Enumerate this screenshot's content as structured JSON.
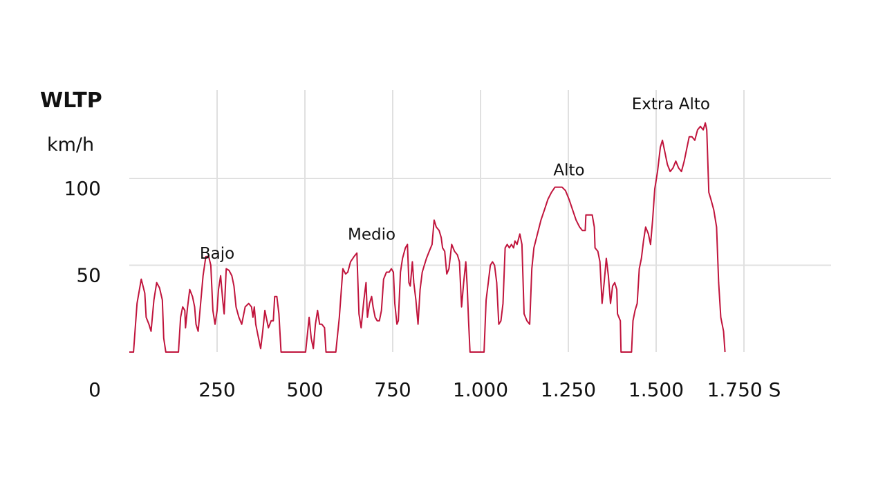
{
  "chart_data": {
    "type": "line",
    "title": "WLTP",
    "ylabel": "km/h",
    "xunit": "S",
    "xlim": [
      0,
      1800
    ],
    "ylim": [
      0,
      131
    ],
    "x_ticks": [
      250,
      500,
      750,
      1000,
      1250,
      1500,
      1750
    ],
    "x_tick_labels": [
      "250",
      "500",
      "750",
      "1.000",
      "1.250",
      "1.500",
      "1.750 S"
    ],
    "y_ticks": [
      0,
      50,
      100
    ],
    "y_tick_labels": [
      "0",
      "50",
      "100"
    ],
    "grid": true,
    "line_color": "#c0143c",
    "phases": [
      {
        "label": "Bajo",
        "x": 250,
        "y": 57
      },
      {
        "label": "Medio",
        "x": 690,
        "y": 68
      },
      {
        "label": "Alto",
        "x": 1252,
        "y": 105
      },
      {
        "label": "Extra Alto",
        "x": 1542,
        "y": 143
      }
    ],
    "series": [
      {
        "points": [
          [
            0,
            0
          ],
          [
            12,
            0
          ],
          [
            22,
            28
          ],
          [
            34,
            42
          ],
          [
            44,
            34
          ],
          [
            48,
            20
          ],
          [
            56,
            16
          ],
          [
            62,
            12
          ],
          [
            70,
            30
          ],
          [
            78,
            40
          ],
          [
            86,
            37
          ],
          [
            94,
            30
          ],
          [
            98,
            8
          ],
          [
            104,
            0
          ],
          [
            140,
            0
          ],
          [
            146,
            20
          ],
          [
            152,
            26
          ],
          [
            158,
            24
          ],
          [
            160,
            14
          ],
          [
            166,
            26
          ],
          [
            172,
            36
          ],
          [
            180,
            32
          ],
          [
            186,
            26
          ],
          [
            190,
            16
          ],
          [
            196,
            12
          ],
          [
            204,
            30
          ],
          [
            210,
            44
          ],
          [
            218,
            55
          ],
          [
            226,
            55
          ],
          [
            232,
            50
          ],
          [
            238,
            24
          ],
          [
            244,
            16
          ],
          [
            250,
            24
          ],
          [
            254,
            36
          ],
          [
            260,
            44
          ],
          [
            266,
            30
          ],
          [
            270,
            22
          ],
          [
            276,
            48
          ],
          [
            284,
            47
          ],
          [
            292,
            44
          ],
          [
            298,
            38
          ],
          [
            304,
            26
          ],
          [
            312,
            20
          ],
          [
            320,
            16
          ],
          [
            330,
            26
          ],
          [
            340,
            28
          ],
          [
            348,
            26
          ],
          [
            352,
            20
          ],
          [
            356,
            26
          ],
          [
            360,
            16
          ],
          [
            366,
            10
          ],
          [
            374,
            2
          ],
          [
            380,
            12
          ],
          [
            386,
            24
          ],
          [
            392,
            18
          ],
          [
            396,
            14
          ],
          [
            404,
            18
          ],
          [
            410,
            18
          ],
          [
            414,
            32
          ],
          [
            420,
            32
          ],
          [
            426,
            22
          ],
          [
            432,
            0
          ],
          [
            502,
            0
          ],
          [
            512,
            20
          ],
          [
            518,
            8
          ],
          [
            524,
            2
          ],
          [
            530,
            16
          ],
          [
            536,
            24
          ],
          [
            542,
            16
          ],
          [
            548,
            16
          ],
          [
            556,
            14
          ],
          [
            560,
            0
          ],
          [
            588,
            0
          ],
          [
            598,
            20
          ],
          [
            608,
            48
          ],
          [
            616,
            45
          ],
          [
            622,
            46
          ],
          [
            630,
            52
          ],
          [
            640,
            55
          ],
          [
            648,
            57
          ],
          [
            654,
            22
          ],
          [
            660,
            14
          ],
          [
            668,
            30
          ],
          [
            674,
            40
          ],
          [
            678,
            20
          ],
          [
            684,
            28
          ],
          [
            690,
            32
          ],
          [
            694,
            26
          ],
          [
            700,
            20
          ],
          [
            706,
            18
          ],
          [
            712,
            18
          ],
          [
            718,
            24
          ],
          [
            724,
            42
          ],
          [
            732,
            46
          ],
          [
            740,
            46
          ],
          [
            746,
            48
          ],
          [
            752,
            46
          ],
          [
            756,
            28
          ],
          [
            762,
            16
          ],
          [
            766,
            18
          ],
          [
            772,
            46
          ],
          [
            778,
            54
          ],
          [
            786,
            60
          ],
          [
            792,
            62
          ],
          [
            796,
            40
          ],
          [
            800,
            38
          ],
          [
            806,
            52
          ],
          [
            810,
            40
          ],
          [
            816,
            30
          ],
          [
            822,
            16
          ],
          [
            828,
            36
          ],
          [
            834,
            46
          ],
          [
            840,
            50
          ],
          [
            846,
            54
          ],
          [
            854,
            58
          ],
          [
            862,
            62
          ],
          [
            868,
            76
          ],
          [
            874,
            72
          ],
          [
            882,
            70
          ],
          [
            888,
            66
          ],
          [
            892,
            60
          ],
          [
            898,
            58
          ],
          [
            904,
            45
          ],
          [
            910,
            48
          ],
          [
            918,
            62
          ],
          [
            926,
            58
          ],
          [
            934,
            56
          ],
          [
            940,
            52
          ],
          [
            946,
            26
          ],
          [
            952,
            40
          ],
          [
            958,
            52
          ],
          [
            962,
            38
          ],
          [
            966,
            18
          ],
          [
            970,
            0
          ],
          [
            1010,
            0
          ],
          [
            1016,
            30
          ],
          [
            1022,
            40
          ],
          [
            1028,
            50
          ],
          [
            1034,
            52
          ],
          [
            1040,
            50
          ],
          [
            1046,
            40
          ],
          [
            1052,
            16
          ],
          [
            1058,
            18
          ],
          [
            1064,
            28
          ],
          [
            1070,
            60
          ],
          [
            1076,
            62
          ],
          [
            1082,
            60
          ],
          [
            1088,
            62
          ],
          [
            1094,
            60
          ],
          [
            1098,
            64
          ],
          [
            1104,
            62
          ],
          [
            1112,
            68
          ],
          [
            1118,
            62
          ],
          [
            1124,
            22
          ],
          [
            1132,
            18
          ],
          [
            1140,
            16
          ],
          [
            1146,
            48
          ],
          [
            1152,
            60
          ],
          [
            1162,
            68
          ],
          [
            1172,
            76
          ],
          [
            1182,
            82
          ],
          [
            1192,
            88
          ],
          [
            1202,
            92
          ],
          [
            1212,
            95
          ],
          [
            1222,
            95
          ],
          [
            1232,
            95
          ],
          [
            1242,
            93
          ],
          [
            1252,
            88
          ],
          [
            1262,
            82
          ],
          [
            1272,
            76
          ],
          [
            1282,
            72
          ],
          [
            1290,
            70
          ],
          [
            1298,
            70
          ],
          [
            1300,
            79
          ],
          [
            1318,
            79
          ],
          [
            1324,
            72
          ],
          [
            1326,
            60
          ],
          [
            1334,
            58
          ],
          [
            1340,
            52
          ],
          [
            1346,
            28
          ],
          [
            1352,
            40
          ],
          [
            1358,
            54
          ],
          [
            1364,
            44
          ],
          [
            1370,
            28
          ],
          [
            1376,
            38
          ],
          [
            1382,
            40
          ],
          [
            1388,
            36
          ],
          [
            1390,
            22
          ],
          [
            1398,
            18
          ],
          [
            1400,
            0
          ],
          [
            1430,
            0
          ],
          [
            1434,
            18
          ],
          [
            1440,
            24
          ],
          [
            1446,
            28
          ],
          [
            1452,
            48
          ],
          [
            1458,
            54
          ],
          [
            1464,
            64
          ],
          [
            1470,
            72
          ],
          [
            1478,
            68
          ],
          [
            1484,
            62
          ],
          [
            1490,
            76
          ],
          [
            1496,
            94
          ],
          [
            1504,
            104
          ],
          [
            1512,
            118
          ],
          [
            1518,
            122
          ],
          [
            1524,
            116
          ],
          [
            1532,
            108
          ],
          [
            1540,
            104
          ],
          [
            1548,
            106
          ],
          [
            1556,
            110
          ],
          [
            1564,
            106
          ],
          [
            1572,
            104
          ],
          [
            1580,
            110
          ],
          [
            1588,
            118
          ],
          [
            1594,
            124
          ],
          [
            1602,
            124
          ],
          [
            1610,
            122
          ],
          [
            1618,
            128
          ],
          [
            1626,
            130
          ],
          [
            1634,
            128
          ],
          [
            1640,
            132
          ],
          [
            1644,
            128
          ],
          [
            1650,
            92
          ],
          [
            1656,
            88
          ],
          [
            1664,
            82
          ],
          [
            1672,
            72
          ],
          [
            1678,
            40
          ],
          [
            1684,
            20
          ],
          [
            1692,
            12
          ],
          [
            1696,
            0
          ]
        ]
      }
    ]
  }
}
